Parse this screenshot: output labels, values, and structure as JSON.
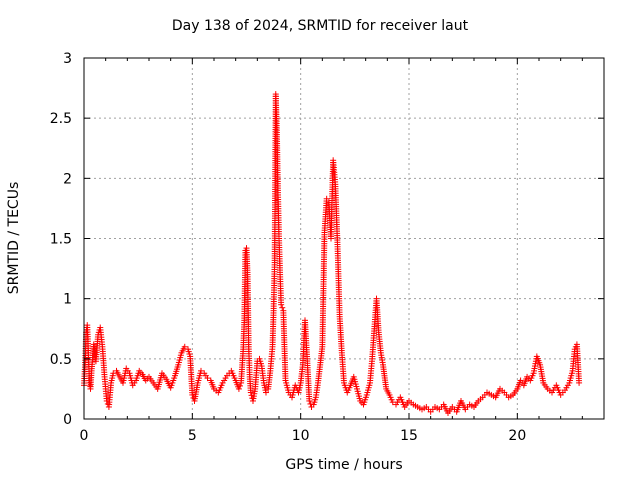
{
  "chart_data": {
    "type": "scatter",
    "title": "Day 138 of 2024, SRMTID for receiver laut",
    "xlabel": "GPS time / hours",
    "ylabel": "SRMTID / TECUs",
    "xlim": [
      0,
      24
    ],
    "ylim": [
      0,
      3
    ],
    "xticks": [
      0,
      5,
      10,
      15,
      20
    ],
    "yticks": [
      0,
      0.5,
      1,
      1.5,
      2,
      2.5,
      3
    ],
    "xtick_labels": [
      "0",
      "5",
      "10",
      "15",
      "20"
    ],
    "ytick_labels": [
      "0",
      "0.5",
      "1",
      "1.5",
      "2",
      "2.5",
      "3"
    ],
    "grid": true,
    "marker": "+",
    "colors": {
      "series": "#ff0000",
      "grid": "#a0a0a0",
      "axis": "#000000"
    },
    "series": [
      {
        "name": "SRMTID",
        "x": [
          0.0,
          0.05,
          0.1,
          0.15,
          0.2,
          0.25,
          0.3,
          0.35,
          0.45,
          0.55,
          0.65,
          0.75,
          0.85,
          0.95,
          1.05,
          1.15,
          1.25,
          1.35,
          1.5,
          1.65,
          1.8,
          1.95,
          2.1,
          2.25,
          2.4,
          2.55,
          2.7,
          2.85,
          3.0,
          3.2,
          3.4,
          3.6,
          3.8,
          4.0,
          4.2,
          4.35,
          4.5,
          4.65,
          4.8,
          4.9,
          5.0,
          5.1,
          5.25,
          5.4,
          5.55,
          5.7,
          5.85,
          6.0,
          6.2,
          6.4,
          6.6,
          6.8,
          7.0,
          7.15,
          7.25,
          7.35,
          7.4,
          7.45,
          7.5,
          7.55,
          7.6,
          7.65,
          7.7,
          7.8,
          7.9,
          8.0,
          8.1,
          8.2,
          8.3,
          8.4,
          8.5,
          8.6,
          8.7,
          8.75,
          8.8,
          8.85,
          8.9,
          8.95,
          9.0,
          9.05,
          9.1,
          9.2,
          9.3,
          9.45,
          9.6,
          9.75,
          9.9,
          10.0,
          10.1,
          10.2,
          10.3,
          10.4,
          10.5,
          10.6,
          10.7,
          10.8,
          10.9,
          11.0,
          11.1,
          11.2,
          11.3,
          11.4,
          11.5,
          11.6,
          11.7,
          11.8,
          11.9,
          12.0,
          12.15,
          12.3,
          12.45,
          12.6,
          12.75,
          12.9,
          13.05,
          13.2,
          13.3,
          13.4,
          13.5,
          13.6,
          13.7,
          13.8,
          13.95,
          14.1,
          14.25,
          14.4,
          14.6,
          14.8,
          15.0,
          15.2,
          15.4,
          15.6,
          15.8,
          16.0,
          16.2,
          16.4,
          16.6,
          16.8,
          17.0,
          17.2,
          17.4,
          17.6,
          17.8,
          18.0,
          18.2,
          18.4,
          18.6,
          18.8,
          19.0,
          19.2,
          19.4,
          19.6,
          19.8,
          20.0,
          20.15,
          20.3,
          20.45,
          20.6,
          20.75,
          20.9,
          21.05,
          21.2,
          21.4,
          21.6,
          21.8,
          22.0,
          22.2,
          22.4,
          22.55,
          22.65,
          22.75,
          22.85
        ],
        "y": [
          0.28,
          0.45,
          0.72,
          0.78,
          0.55,
          0.3,
          0.25,
          0.4,
          0.62,
          0.48,
          0.7,
          0.76,
          0.6,
          0.35,
          0.15,
          0.1,
          0.3,
          0.38,
          0.4,
          0.35,
          0.3,
          0.42,
          0.38,
          0.28,
          0.32,
          0.4,
          0.37,
          0.32,
          0.35,
          0.3,
          0.25,
          0.38,
          0.33,
          0.26,
          0.36,
          0.45,
          0.55,
          0.6,
          0.58,
          0.52,
          0.2,
          0.15,
          0.3,
          0.4,
          0.38,
          0.34,
          0.32,
          0.25,
          0.22,
          0.3,
          0.36,
          0.4,
          0.32,
          0.25,
          0.3,
          0.58,
          0.82,
          1.4,
          1.42,
          1.2,
          0.6,
          0.35,
          0.22,
          0.15,
          0.25,
          0.48,
          0.5,
          0.44,
          0.3,
          0.22,
          0.25,
          0.4,
          0.6,
          0.9,
          1.3,
          2.7,
          2.4,
          1.9,
          1.5,
          1.2,
          0.95,
          0.9,
          0.32,
          0.22,
          0.18,
          0.28,
          0.22,
          0.3,
          0.45,
          0.82,
          0.5,
          0.15,
          0.1,
          0.12,
          0.18,
          0.3,
          0.45,
          0.6,
          1.55,
          1.83,
          1.8,
          1.5,
          2.15,
          1.95,
          1.45,
          0.85,
          0.55,
          0.3,
          0.22,
          0.28,
          0.35,
          0.25,
          0.15,
          0.12,
          0.2,
          0.3,
          0.5,
          0.75,
          1.0,
          0.72,
          0.55,
          0.45,
          0.25,
          0.2,
          0.14,
          0.12,
          0.18,
          0.1,
          0.15,
          0.12,
          0.1,
          0.08,
          0.1,
          0.06,
          0.1,
          0.08,
          0.12,
          0.05,
          0.1,
          0.06,
          0.15,
          0.08,
          0.12,
          0.1,
          0.15,
          0.18,
          0.22,
          0.2,
          0.18,
          0.25,
          0.22,
          0.18,
          0.2,
          0.25,
          0.32,
          0.28,
          0.35,
          0.32,
          0.38,
          0.52,
          0.45,
          0.3,
          0.25,
          0.22,
          0.28,
          0.2,
          0.24,
          0.3,
          0.4,
          0.58,
          0.62,
          0.3
        ]
      }
    ]
  }
}
